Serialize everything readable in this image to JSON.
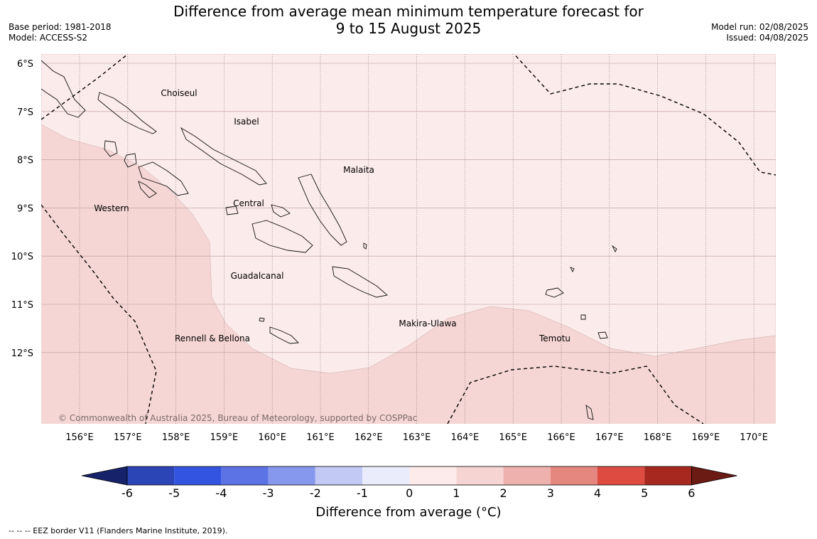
{
  "title": {
    "line1": "Difference from average mean minimum temperature forecast for",
    "line2": "9 to 15 August 2025"
  },
  "meta_left": {
    "base_period": "Base period: 1981-2018",
    "model": "Model: ACCESS-S2"
  },
  "meta_right": {
    "model_run": "Model run: 02/08/2025",
    "issued": "Issued: 04/08/2025"
  },
  "map": {
    "lat_labels": [
      "6°S",
      "7°S",
      "8°S",
      "9°S",
      "10°S",
      "11°S",
      "12°S"
    ],
    "lon_labels": [
      "156°E",
      "157°E",
      "158°E",
      "159°E",
      "160°E",
      "161°E",
      "162°E",
      "163°E",
      "164°E",
      "165°E",
      "166°E",
      "167°E",
      "168°E",
      "169°E",
      "170°E"
    ],
    "region_labels": {
      "choiseul": "Choiseul",
      "isabel": "Isabel",
      "malaita": "Malaita",
      "western": "Western",
      "central": "Central",
      "guadalcanal": "Guadalcanal",
      "makira_ulawa": "Makira-Ulawa",
      "rennell_bellona": "Rennell & Bellona",
      "temotu": "Temotu"
    },
    "copyright": "© Commonwealth of Australia 2025, Bureau of Meteorology, supported by COSPPac",
    "anomaly_colors": {
      "zero_to_one": "#fbebea",
      "one_to_two": "#f5d6d4"
    }
  },
  "colorbar": {
    "ticks": [
      "-6",
      "-5",
      "-4",
      "-3",
      "-2",
      "-1",
      "0",
      "1",
      "2",
      "3",
      "4",
      "5",
      "6"
    ],
    "colors": [
      "#16236b",
      "#2b44b6",
      "#3354e0",
      "#5b73e4",
      "#8698ed",
      "#c2c9f5",
      "#eaecfb",
      "#fcebea",
      "#f5d4d2",
      "#eeb1ad",
      "#e6877f",
      "#dd4b41",
      "#a6281f",
      "#6b1a14"
    ],
    "label": "Difference from average (°C)"
  },
  "footer": "--  --  -- EEZ border V11 (Flanders Marine Institute, 2019)."
}
